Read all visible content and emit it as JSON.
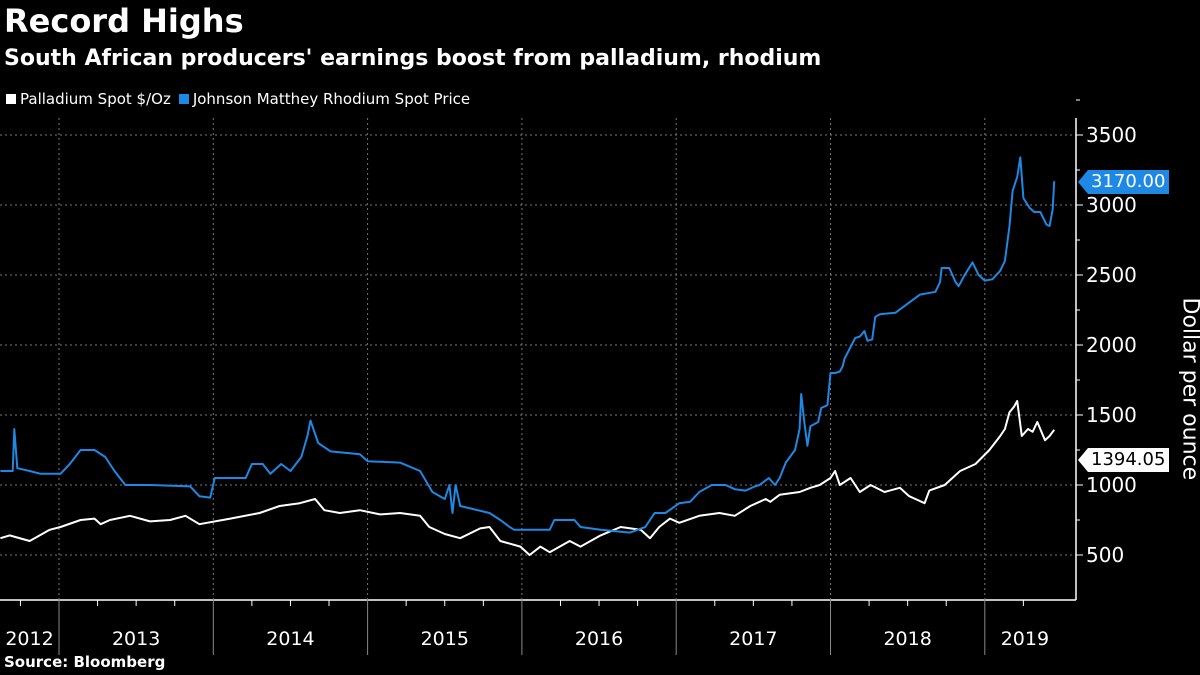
{
  "chart_data": {
    "type": "line",
    "title": "Record Highs",
    "subtitle": "South African producers' earnings boost from palladium, rhodium",
    "ylabel": "Dollar per ounce",
    "xlabel": "",
    "ylim": [
      250,
      3650
    ],
    "xlim": [
      2012.62,
      2019.47
    ],
    "yticks": [
      "500",
      "1000",
      "1500",
      "2000",
      "2500",
      "3000",
      "3500"
    ],
    "ytick_values": [
      500,
      1000,
      1500,
      2000,
      2500,
      3000,
      3500
    ],
    "xtick_labels": [
      "2012",
      "2013",
      "2014",
      "2015",
      "2016",
      "2017",
      "2018",
      "2019"
    ],
    "grid": true,
    "legend_position": "top-left",
    "source": "Source: Bloomberg",
    "series": [
      {
        "name": "Palladium Spot $/Oz",
        "color": "#ffffff",
        "last_value_label": "1394.05",
        "x": [
          2012.62,
          2012.68,
          2012.81,
          2012.94,
          2013.01,
          2013.14,
          2013.23,
          2013.27,
          2013.33,
          2013.46,
          2013.59,
          2013.72,
          2013.82,
          2013.91,
          2014.11,
          2014.3,
          2014.43,
          2014.56,
          2014.66,
          2014.72,
          2014.82,
          2014.95,
          2015.08,
          2015.21,
          2015.34,
          2015.4,
          2015.5,
          2015.6,
          2015.73,
          2015.79,
          2015.86,
          2015.99,
          2016.05,
          2016.12,
          2016.18,
          2016.31,
          2016.38,
          2016.51,
          2016.64,
          2016.77,
          2016.83,
          2016.89,
          2016.96,
          2017.02,
          2017.15,
          2017.28,
          2017.38,
          2017.48,
          2017.58,
          2017.61,
          2017.67,
          2017.8,
          2017.87,
          2017.93,
          2018.0,
          2018.03,
          2018.06,
          2018.13,
          2018.19,
          2018.26,
          2018.35,
          2018.45,
          2018.51,
          2018.55,
          2018.61,
          2018.64,
          2018.74,
          2018.84,
          2018.94,
          2019.03,
          2019.1,
          2019.13,
          2019.16,
          2019.19,
          2019.21,
          2019.24,
          2019.28,
          2019.31,
          2019.34,
          2019.39,
          2019.42,
          2019.45
        ],
        "y": [
          620,
          640,
          600,
          680,
          700,
          750,
          760,
          720,
          750,
          780,
          740,
          750,
          780,
          720,
          760,
          800,
          850,
          870,
          900,
          820,
          800,
          820,
          790,
          800,
          780,
          700,
          650,
          620,
          690,
          700,
          600,
          560,
          500,
          560,
          520,
          600,
          560,
          640,
          700,
          680,
          620,
          700,
          760,
          730,
          780,
          800,
          780,
          850,
          900,
          880,
          930,
          950,
          980,
          1000,
          1050,
          1100,
          1000,
          1050,
          950,
          1000,
          950,
          980,
          920,
          900,
          870,
          960,
          1000,
          1100,
          1150,
          1250,
          1350,
          1400,
          1520,
          1560,
          1600,
          1350,
          1400,
          1380,
          1450,
          1320,
          1350,
          1394.05
        ]
      },
      {
        "name": "Johnson Matthey Rhodium Spot Price",
        "color": "#1e88e5",
        "last_value_label": "3170.00",
        "x": [
          2012.62,
          2012.7,
          2012.71,
          2012.73,
          2012.81,
          2012.88,
          2013.01,
          2013.07,
          2013.14,
          2013.23,
          2013.3,
          2013.36,
          2013.43,
          2013.59,
          2013.85,
          2013.91,
          2013.98,
          2014.01,
          2014.21,
          2014.25,
          2014.32,
          2014.37,
          2014.44,
          2014.5,
          2014.57,
          2014.61,
          2014.63,
          2014.68,
          2014.76,
          2014.85,
          2014.95,
          2015.0,
          2015.21,
          2015.34,
          2015.42,
          2015.5,
          2015.53,
          2015.55,
          2015.57,
          2015.6,
          2015.79,
          2015.86,
          2015.92,
          2015.95,
          2016.18,
          2016.21,
          2016.34,
          2016.38,
          2016.51,
          2016.7,
          2016.8,
          2016.86,
          2016.93,
          2017.02,
          2017.09,
          2017.15,
          2017.23,
          2017.32,
          2017.38,
          2017.45,
          2017.51,
          2017.54,
          2017.6,
          2017.64,
          2017.67,
          2017.71,
          2017.77,
          2017.8,
          2017.81,
          2017.83,
          2017.85,
          2017.87,
          2017.92,
          2017.94,
          2017.98,
          2018.0,
          2018.03,
          2018.06,
          2018.08,
          2018.09,
          2018.16,
          2018.19,
          2018.22,
          2018.24,
          2018.27,
          2018.29,
          2018.32,
          2018.42,
          2018.53,
          2018.58,
          2018.68,
          2018.71,
          2018.72,
          2018.77,
          2018.81,
          2018.83,
          2018.87,
          2018.92,
          2018.96,
          2019.0,
          2019.05,
          2019.1,
          2019.13,
          2019.16,
          2019.18,
          2019.21,
          2019.23,
          2019.25,
          2019.29,
          2019.32,
          2019.36,
          2019.4,
          2019.42,
          2019.44,
          2019.45
        ],
        "y": [
          1100,
          1100,
          1400,
          1120,
          1100,
          1080,
          1080,
          1150,
          1250,
          1250,
          1200,
          1100,
          1000,
          1000,
          990,
          920,
          910,
          1050,
          1050,
          1150,
          1150,
          1080,
          1150,
          1100,
          1200,
          1350,
          1460,
          1300,
          1240,
          1230,
          1220,
          1170,
          1160,
          1100,
          950,
          900,
          1000,
          800,
          1000,
          850,
          800,
          750,
          700,
          680,
          680,
          750,
          750,
          700,
          680,
          660,
          700,
          800,
          800,
          870,
          880,
          950,
          1000,
          1000,
          970,
          960,
          990,
          1000,
          1050,
          1000,
          1050,
          1160,
          1250,
          1400,
          1650,
          1450,
          1280,
          1420,
          1450,
          1550,
          1570,
          1800,
          1800,
          1810,
          1850,
          1900,
          2050,
          2060,
          2100,
          2030,
          2040,
          2200,
          2220,
          2230,
          2320,
          2360,
          2380,
          2450,
          2550,
          2550,
          2450,
          2420,
          2500,
          2590,
          2500,
          2460,
          2470,
          2530,
          2600,
          2850,
          3100,
          3200,
          3340,
          3050,
          2980,
          2950,
          2950,
          2860,
          2850,
          2970,
          3170
        ]
      }
    ]
  }
}
